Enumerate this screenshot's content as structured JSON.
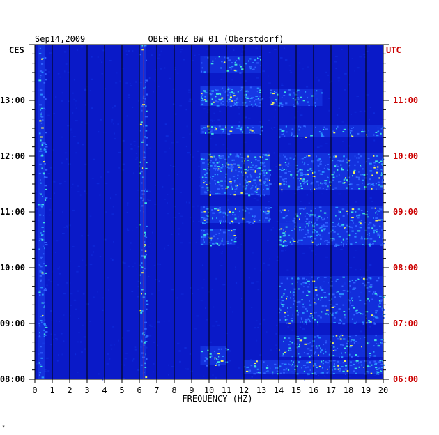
{
  "chart_data": {
    "type": "heatmap",
    "date": "Sep14,2009",
    "title": "OBER HHZ BW 01 (Oberstdorf)",
    "xlabel": "FREQUENCY (HZ)",
    "left_axis_label": "CES",
    "right_axis_label": "UTC",
    "xlim": [
      0,
      20
    ],
    "x_ticks": [
      "0",
      "1",
      "2",
      "3",
      "4",
      "5",
      "6",
      "7",
      "8",
      "9",
      "10",
      "11",
      "12",
      "13",
      "14",
      "15",
      "16",
      "17",
      "18",
      "19",
      "20"
    ],
    "left_ticks": [
      {
        "t": 8,
        "label": "08:00"
      },
      {
        "t": 9,
        "label": "09:00"
      },
      {
        "t": 10,
        "label": "10:00"
      },
      {
        "t": 11,
        "label": "11:00"
      },
      {
        "t": 12,
        "label": "12:00"
      },
      {
        "t": 13,
        "label": "13:00"
      }
    ],
    "right_ticks": [
      {
        "t": 8,
        "label": "06:00"
      },
      {
        "t": 9,
        "label": "07:00"
      },
      {
        "t": 10,
        "label": "08:00"
      },
      {
        "t": 11,
        "label": "09:00"
      },
      {
        "t": 12,
        "label": "10:00"
      },
      {
        "t": 13,
        "label": "11:00"
      }
    ],
    "time_range_local_hours": [
      8,
      14
    ],
    "grid": true,
    "vertical_gridline_step_hz": 1,
    "background_color": "#0a1ac8",
    "gridline_color": "#000000",
    "marker_line_hz": 6.25,
    "marker_line_color": "#c83030",
    "left_label_color": "#000000",
    "right_label_color": "#cc0000",
    "energy_bands": [
      {
        "t_start": 8.1,
        "t_end": 8.35,
        "f_start": 12.0,
        "f_end": 20.0,
        "intensity": 0.7
      },
      {
        "t_start": 8.25,
        "t_end": 8.6,
        "f_start": 9.5,
        "f_end": 11.0,
        "intensity": 0.55
      },
      {
        "t_start": 8.4,
        "t_end": 8.8,
        "f_start": 14.0,
        "f_end": 20.0,
        "intensity": 0.45
      },
      {
        "t_start": 9.0,
        "t_end": 9.6,
        "f_start": 14.0,
        "f_end": 20.0,
        "intensity": 0.5
      },
      {
        "t_start": 9.6,
        "t_end": 9.85,
        "f_start": 14.0,
        "f_end": 20.0,
        "intensity": 0.4
      },
      {
        "t_start": 10.4,
        "t_end": 10.7,
        "f_start": 9.5,
        "f_end": 11.5,
        "intensity": 0.7
      },
      {
        "t_start": 10.4,
        "t_end": 10.8,
        "f_start": 14.0,
        "f_end": 20.0,
        "intensity": 0.65
      },
      {
        "t_start": 10.8,
        "t_end": 11.1,
        "f_start": 9.5,
        "f_end": 13.5,
        "intensity": 0.7
      },
      {
        "t_start": 10.8,
        "t_end": 11.1,
        "f_start": 14.0,
        "f_end": 20.0,
        "intensity": 0.5
      },
      {
        "t_start": 11.3,
        "t_end": 12.05,
        "f_start": 9.5,
        "f_end": 13.5,
        "intensity": 0.8
      },
      {
        "t_start": 11.4,
        "t_end": 12.05,
        "f_start": 14.0,
        "f_end": 20.0,
        "intensity": 0.6
      },
      {
        "t_start": 12.4,
        "t_end": 12.55,
        "f_start": 9.5,
        "f_end": 13.0,
        "intensity": 0.85
      },
      {
        "t_start": 12.35,
        "t_end": 12.55,
        "f_start": 14.0,
        "f_end": 20.0,
        "intensity": 0.45
      },
      {
        "t_start": 12.9,
        "t_end": 13.25,
        "f_start": 9.5,
        "f_end": 13.0,
        "intensity": 0.9
      },
      {
        "t_start": 12.9,
        "t_end": 13.2,
        "f_start": 13.5,
        "f_end": 16.5,
        "intensity": 0.5
      },
      {
        "t_start": 13.5,
        "t_end": 13.8,
        "f_start": 9.5,
        "f_end": 13.0,
        "intensity": 0.45
      },
      {
        "t_start": 8.0,
        "t_end": 14.0,
        "f_start": 0.2,
        "f_end": 0.6,
        "intensity": 0.6
      },
      {
        "t_start": 8.0,
        "t_end": 14.0,
        "f_start": 6.0,
        "f_end": 6.4,
        "intensity": 0.45
      }
    ]
  }
}
